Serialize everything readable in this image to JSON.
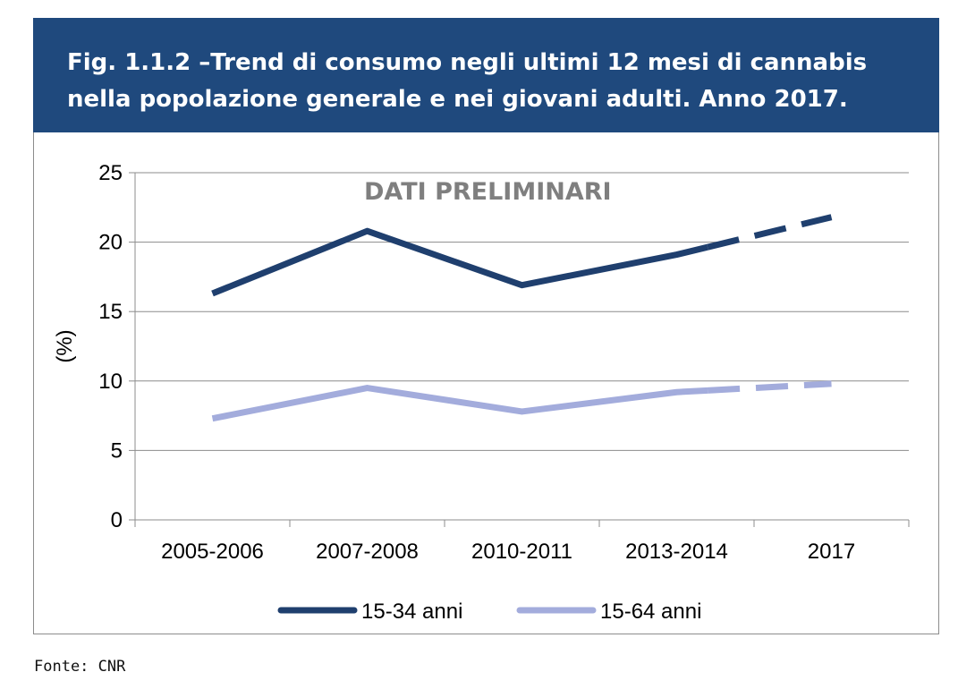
{
  "title": {
    "lines": [
      "Fig. 1.1.2 –Trend di consumo negli ultimi 12 mesi di cannabis",
      "nella popolazione generale e nei giovani adulti. Anno 2017."
    ]
  },
  "annotation": "DATI PRELIMINARI",
  "source": "Fonte: CNR",
  "chart_data": {
    "type": "line",
    "categories": [
      "2005-2006",
      "2007-2008",
      "2010-2011",
      "2013-2014",
      "2017"
    ],
    "ylabel": "(%)",
    "xlabel": "",
    "ylim": [
      0,
      25
    ],
    "yticks": [
      0,
      5,
      10,
      15,
      20,
      25
    ],
    "grid": true,
    "legend_position": "bottom",
    "series": [
      {
        "name": "15-34 anni",
        "values": [
          16.3,
          20.8,
          16.9,
          19.1,
          21.8
        ],
        "color": "#1f3f6e",
        "dashed_last_segment": true
      },
      {
        "name": "15-64 anni",
        "values": [
          7.3,
          9.5,
          7.8,
          9.2,
          9.8
        ],
        "color": "#a3acdc",
        "dashed_last_segment": true
      }
    ]
  }
}
